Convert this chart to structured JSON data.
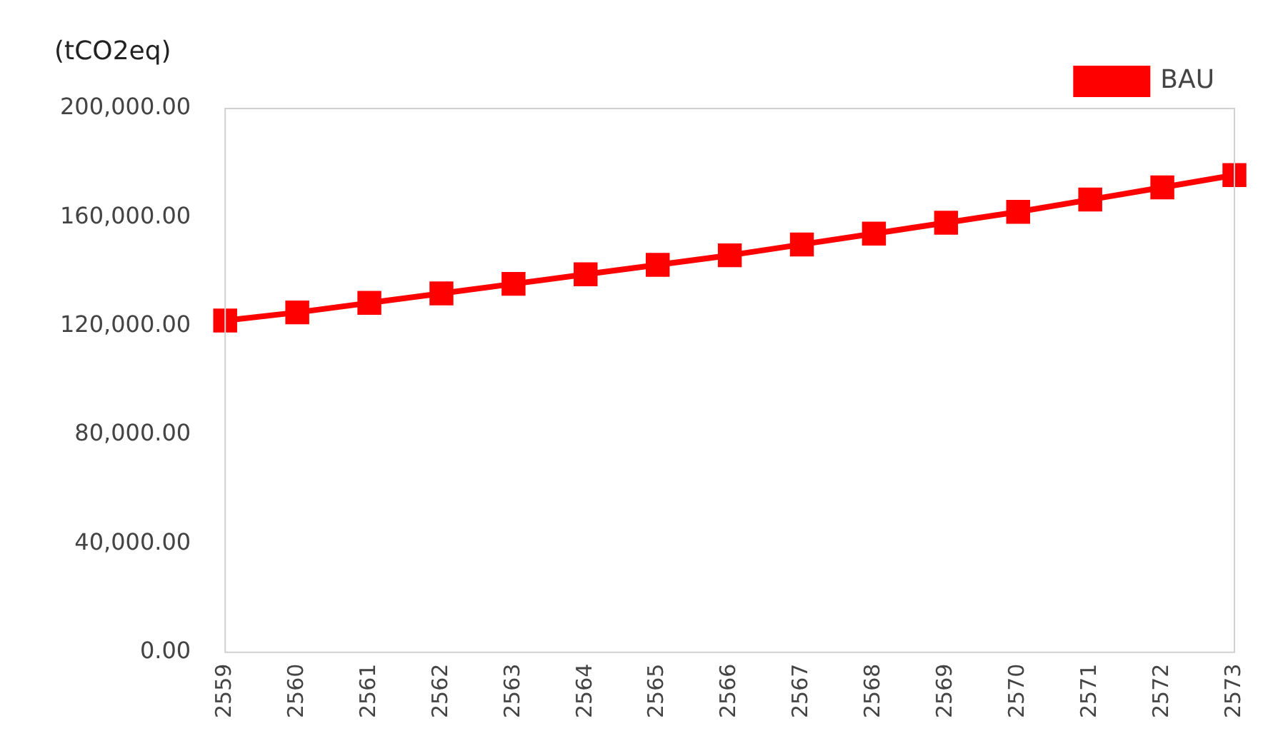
{
  "chart_data": {
    "type": "line",
    "ylabel": "(tCO2eq)",
    "categories": [
      "2559",
      "2560",
      "2561",
      "2562",
      "2563",
      "2564",
      "2565",
      "2566",
      "2567",
      "2568",
      "2569",
      "2570",
      "2571",
      "2572",
      "2573"
    ],
    "series": [
      {
        "name": "BAU",
        "color": "#ff0000",
        "values": [
          122000,
          125000,
          128500,
          132000,
          135500,
          139000,
          142500,
          146000,
          150000,
          154000,
          158000,
          162000,
          166500,
          171000,
          175500
        ]
      }
    ],
    "ylim": [
      0,
      200000
    ],
    "yticks": [
      {
        "value": 0,
        "label": "0.00"
      },
      {
        "value": 40000,
        "label": "40,000.00"
      },
      {
        "value": 80000,
        "label": "80,000.00"
      },
      {
        "value": 120000,
        "label": "120,000.00"
      },
      {
        "value": 160000,
        "label": "160,000.00"
      },
      {
        "value": 200000,
        "label": "200,000.00"
      }
    ],
    "grid": false,
    "legend": "top right",
    "marker": "square",
    "line_style": "solid"
  }
}
